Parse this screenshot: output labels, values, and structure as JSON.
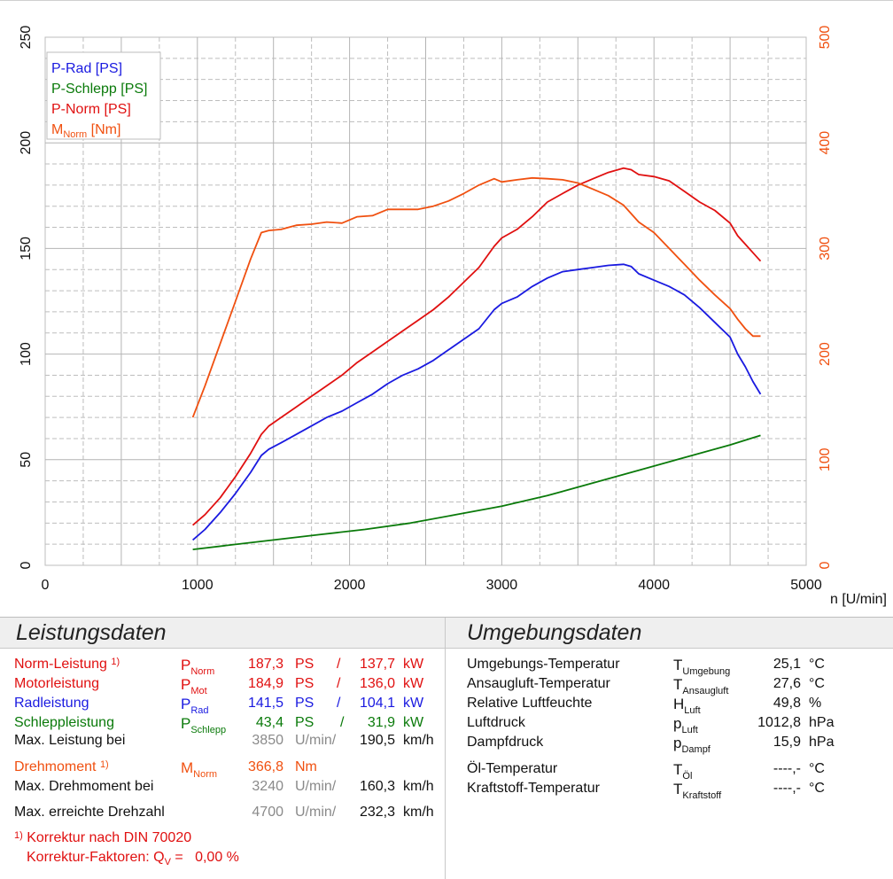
{
  "chart_data": {
    "type": "line",
    "xlabel": "n [U/min]",
    "x_ticks": [
      0,
      1000,
      2000,
      3000,
      4000,
      5000
    ],
    "xlim": [
      0,
      5000
    ],
    "y_left_ticks": [
      0,
      50,
      100,
      150,
      200,
      250
    ],
    "ylim_left": [
      0,
      250
    ],
    "y_right_ticks": [
      0,
      100,
      200,
      300,
      400,
      500
    ],
    "ylim_right": [
      0,
      500
    ],
    "grid": true,
    "legend_position": "top-left",
    "series": [
      {
        "key": "rad",
        "name": "P-Rad [PS]",
        "color": "#1a1ae0",
        "axis": "left",
        "points": [
          [
            970,
            12
          ],
          [
            1050,
            17
          ],
          [
            1150,
            25
          ],
          [
            1250,
            34
          ],
          [
            1350,
            44
          ],
          [
            1420,
            52
          ],
          [
            1470,
            55
          ],
          [
            1550,
            58
          ],
          [
            1650,
            62
          ],
          [
            1750,
            66
          ],
          [
            1850,
            70
          ],
          [
            1950,
            73
          ],
          [
            2050,
            77
          ],
          [
            2150,
            81
          ],
          [
            2250,
            86
          ],
          [
            2350,
            90
          ],
          [
            2450,
            93
          ],
          [
            2550,
            97
          ],
          [
            2650,
            102
          ],
          [
            2750,
            107
          ],
          [
            2850,
            112
          ],
          [
            2950,
            121
          ],
          [
            3000,
            124
          ],
          [
            3100,
            127
          ],
          [
            3200,
            132
          ],
          [
            3300,
            136
          ],
          [
            3400,
            139
          ],
          [
            3500,
            140
          ],
          [
            3600,
            141
          ],
          [
            3700,
            142
          ],
          [
            3800,
            142.5
          ],
          [
            3850,
            141.5
          ],
          [
            3900,
            138
          ],
          [
            4000,
            135
          ],
          [
            4100,
            132
          ],
          [
            4200,
            128
          ],
          [
            4300,
            122
          ],
          [
            4400,
            115
          ],
          [
            4500,
            108
          ],
          [
            4550,
            100
          ],
          [
            4600,
            94
          ],
          [
            4650,
            87
          ],
          [
            4700,
            81
          ]
        ]
      },
      {
        "key": "schlepp",
        "name": "P-Schlepp [PS]",
        "color": "#0a7a0a",
        "axis": "left",
        "points": [
          [
            970,
            7.5
          ],
          [
            1200,
            9.5
          ],
          [
            1500,
            12
          ],
          [
            1800,
            14.5
          ],
          [
            2100,
            17
          ],
          [
            2400,
            20
          ],
          [
            2700,
            24
          ],
          [
            3000,
            28
          ],
          [
            3300,
            33
          ],
          [
            3600,
            39
          ],
          [
            3900,
            45
          ],
          [
            4200,
            51
          ],
          [
            4500,
            57
          ],
          [
            4700,
            61.5
          ]
        ]
      },
      {
        "key": "norm",
        "name": "P-Norm [PS]",
        "color": "#e01010",
        "axis": "left",
        "points": [
          [
            970,
            19
          ],
          [
            1050,
            24
          ],
          [
            1150,
            32
          ],
          [
            1250,
            42
          ],
          [
            1350,
            53
          ],
          [
            1420,
            62
          ],
          [
            1470,
            66
          ],
          [
            1550,
            70
          ],
          [
            1650,
            75
          ],
          [
            1750,
            80
          ],
          [
            1850,
            85
          ],
          [
            1950,
            90
          ],
          [
            2050,
            96
          ],
          [
            2150,
            101
          ],
          [
            2250,
            106
          ],
          [
            2350,
            111
          ],
          [
            2450,
            116
          ],
          [
            2550,
            121
          ],
          [
            2650,
            127
          ],
          [
            2750,
            134
          ],
          [
            2850,
            141
          ],
          [
            2950,
            151
          ],
          [
            3000,
            155
          ],
          [
            3100,
            159
          ],
          [
            3200,
            165
          ],
          [
            3300,
            172
          ],
          [
            3400,
            176
          ],
          [
            3500,
            180
          ],
          [
            3600,
            183
          ],
          [
            3700,
            186
          ],
          [
            3800,
            188
          ],
          [
            3850,
            187.3
          ],
          [
            3900,
            185
          ],
          [
            4000,
            184
          ],
          [
            4100,
            182
          ],
          [
            4200,
            177
          ],
          [
            4300,
            172
          ],
          [
            4400,
            168
          ],
          [
            4500,
            162
          ],
          [
            4550,
            156
          ],
          [
            4600,
            152
          ],
          [
            4650,
            148
          ],
          [
            4700,
            144
          ]
        ]
      },
      {
        "key": "moment",
        "name": "M",
        "name_sub": "Norm",
        "name_suffix": " [Nm]",
        "color": "#f05010",
        "axis": "right",
        "points": [
          [
            970,
            140
          ],
          [
            1050,
            170
          ],
          [
            1150,
            210
          ],
          [
            1250,
            250
          ],
          [
            1350,
            290
          ],
          [
            1420,
            315
          ],
          [
            1470,
            317
          ],
          [
            1550,
            318
          ],
          [
            1650,
            322
          ],
          [
            1750,
            323
          ],
          [
            1850,
            325
          ],
          [
            1950,
            324
          ],
          [
            2050,
            330
          ],
          [
            2150,
            331
          ],
          [
            2250,
            337
          ],
          [
            2350,
            337
          ],
          [
            2450,
            337
          ],
          [
            2550,
            340
          ],
          [
            2650,
            345
          ],
          [
            2750,
            352
          ],
          [
            2850,
            360
          ],
          [
            2950,
            366
          ],
          [
            3000,
            363
          ],
          [
            3100,
            365
          ],
          [
            3200,
            366.8
          ],
          [
            3300,
            366
          ],
          [
            3400,
            365
          ],
          [
            3500,
            362
          ],
          [
            3600,
            356
          ],
          [
            3700,
            350
          ],
          [
            3800,
            341
          ],
          [
            3900,
            325
          ],
          [
            4000,
            315
          ],
          [
            4100,
            300
          ],
          [
            4200,
            285
          ],
          [
            4300,
            270
          ],
          [
            4400,
            256
          ],
          [
            4500,
            243
          ],
          [
            4550,
            233
          ],
          [
            4600,
            224
          ],
          [
            4650,
            217
          ],
          [
            4700,
            217
          ]
        ]
      }
    ]
  },
  "leistungsdaten": {
    "title": "Leistungsdaten",
    "norm": {
      "label": "Norm-Leistung",
      "marker": "1)",
      "sym": "P",
      "sub": "Norm",
      "ps": "187,3",
      "ps_unit": "PS",
      "slash": "/",
      "kw": "137,7",
      "kw_unit": "kW"
    },
    "mot": {
      "label": "Motorleistung",
      "sym": "P",
      "sub": "Mot",
      "ps": "184,9",
      "ps_unit": "PS",
      "slash": "/",
      "kw": "136,0",
      "kw_unit": "kW"
    },
    "rad": {
      "label": "Radleistung",
      "sym": "P",
      "sub": "Rad",
      "ps": "141,5",
      "ps_unit": "PS",
      "slash": "/",
      "kw": "104,1",
      "kw_unit": "kW"
    },
    "schlepp": {
      "label": "Schleppleistung",
      "sym": "P",
      "sub": "Schlepp",
      "ps": "43,4",
      "ps_unit": "PS",
      "slash": "/",
      "kw": "31,9",
      "kw_unit": "kW"
    },
    "maxleistung": {
      "label": "Max. Leistung bei",
      "rpm": "3850",
      "rpm_unit": "U/min",
      "slash": "/",
      "speed": "190,5",
      "speed_unit": "km/h"
    },
    "drehmoment": {
      "label": "Drehmoment",
      "marker": "1)",
      "sym": "M",
      "sub": "Norm",
      "value": "366,8",
      "unit": "Nm"
    },
    "maxdrehmoment": {
      "label": "Max. Drehmoment bei",
      "rpm": "3240",
      "rpm_unit": "U/min",
      "slash": "/",
      "speed": "160,3",
      "speed_unit": "km/h"
    },
    "maxdrehzahl": {
      "label": "Max. erreichte Drehzahl",
      "rpm": "4700",
      "rpm_unit": "U/min",
      "slash": "/",
      "speed": "232,3",
      "speed_unit": "km/h"
    },
    "footnote_marker": "1)",
    "footnote_line1": "Korrektur nach DIN 70020",
    "footnote_line2_prefix": "Korrektur-Faktoren: Q",
    "footnote_line2_sub": "V",
    "footnote_line2_suffix": " =   0,00 %"
  },
  "umgebungsdaten": {
    "title": "Umgebungsdaten",
    "rows": [
      {
        "label": "Umgebungs-Temperatur",
        "sym": "T",
        "sub": "Umgebung",
        "value": "25,1",
        "unit": "°C"
      },
      {
        "label": "Ansaugluft-Temperatur",
        "sym": "T",
        "sub": "Ansaugluft",
        "value": "27,6",
        "unit": "°C"
      },
      {
        "label": "Relative Luftfeuchte",
        "sym": "H",
        "sub": "Luft",
        "value": "49,8",
        "unit": "%"
      },
      {
        "label": "Luftdruck",
        "sym": "p",
        "sub": "Luft",
        "value": "1012,8",
        "unit": "hPa"
      },
      {
        "label": "Dampfdruck",
        "sym": "p",
        "sub": "Dampf",
        "value": "15,9",
        "unit": "hPa"
      },
      {
        "label": "Öl-Temperatur",
        "sym": "T",
        "sub": "Öl",
        "value": "----,-",
        "unit": "°C"
      },
      {
        "label": "Kraftstoff-Temperatur",
        "sym": "T",
        "sub": "Kraftstoff",
        "value": "----,-",
        "unit": "°C"
      }
    ]
  }
}
